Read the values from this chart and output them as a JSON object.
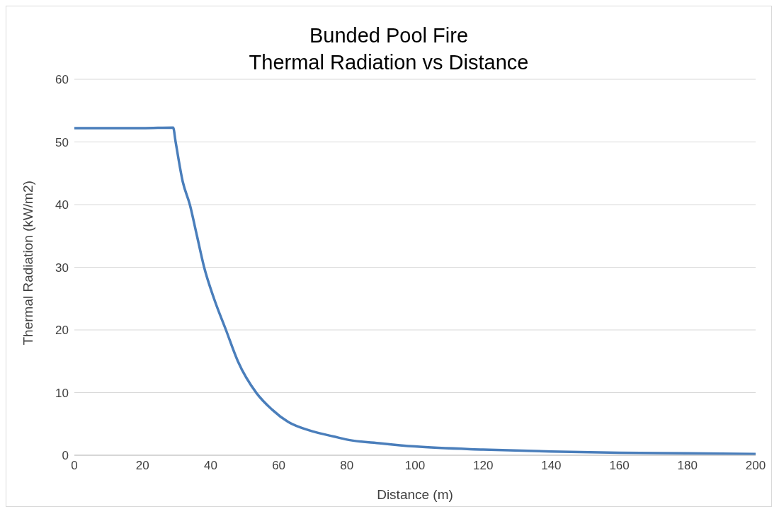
{
  "chart_data": {
    "type": "line",
    "title": "Bunded Pool Fire\nThermal Radiation vs Distance",
    "xlabel": "Distance (m)",
    "ylabel": "Thermal Radiation (kW/m2)",
    "x": [
      0,
      10,
      20,
      29,
      29.7,
      31.8,
      33.9,
      36,
      38.1,
      41,
      44.5,
      48,
      53.5,
      58,
      62.8,
      70,
      76.1,
      80,
      90,
      100,
      120,
      140,
      160,
      180,
      200
    ],
    "series": [
      {
        "color": "#4a7ebb",
        "values": [
          52.2,
          52.2,
          52.2,
          52.3,
          50.1,
          43.7,
          40,
          35,
          30,
          25,
          20,
          15,
          9.9,
          7.3,
          5.3,
          3.8,
          3.0,
          2.5,
          1.9,
          1.4,
          0.9,
          0.6,
          0.4,
          0.3,
          0.2
        ]
      }
    ],
    "xlim": [
      0,
      200
    ],
    "xticks": [
      0,
      20,
      40,
      60,
      80,
      100,
      120,
      140,
      160,
      180,
      200
    ],
    "ylim": [
      0,
      60
    ],
    "yticks": [
      0,
      10,
      20,
      30,
      40,
      50,
      60
    ],
    "grid": "y",
    "legend": false,
    "marker": "none",
    "line_style": "solid"
  }
}
